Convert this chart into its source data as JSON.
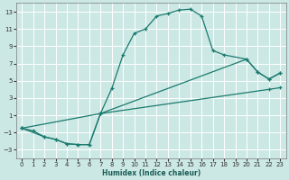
{
  "bg_color": "#cce8e5",
  "grid_color": "#ffffff",
  "line_color": "#1a7a6e",
  "xlabel": "Humidex (Indice chaleur)",
  "xlim": [
    -0.5,
    23.5
  ],
  "ylim": [
    -4,
    14
  ],
  "xticks": [
    0,
    1,
    2,
    3,
    4,
    5,
    6,
    7,
    8,
    9,
    10,
    11,
    12,
    13,
    14,
    15,
    16,
    17,
    18,
    19,
    20,
    21,
    22,
    23
  ],
  "yticks": [
    -3,
    -1,
    1,
    3,
    5,
    7,
    9,
    11,
    13
  ],
  "curve1_x": [
    0,
    1,
    2,
    3,
    4,
    5,
    6,
    7,
    8,
    9,
    10,
    11,
    12,
    13,
    14,
    15,
    16,
    17,
    18,
    20,
    21,
    22,
    23
  ],
  "curve1_y": [
    -0.5,
    -0.8,
    -1.5,
    -1.8,
    -2.3,
    -2.4,
    -2.4,
    1.2,
    4.1,
    8.0,
    10.5,
    11.0,
    12.5,
    12.8,
    13.2,
    13.3,
    12.5,
    8.5,
    8.0,
    7.5,
    6.0,
    5.2,
    5.9
  ],
  "curve2_x": [
    0,
    7,
    22,
    23
  ],
  "curve2_y": [
    -0.5,
    1.2,
    4.0,
    4.2
  ],
  "curve3_x": [
    0,
    2,
    3,
    4,
    5,
    6,
    7,
    20,
    21,
    22,
    23
  ],
  "curve3_y": [
    -0.5,
    -1.5,
    -1.8,
    -2.3,
    -2.4,
    -2.4,
    1.2,
    7.5,
    6.0,
    5.2,
    5.9
  ]
}
